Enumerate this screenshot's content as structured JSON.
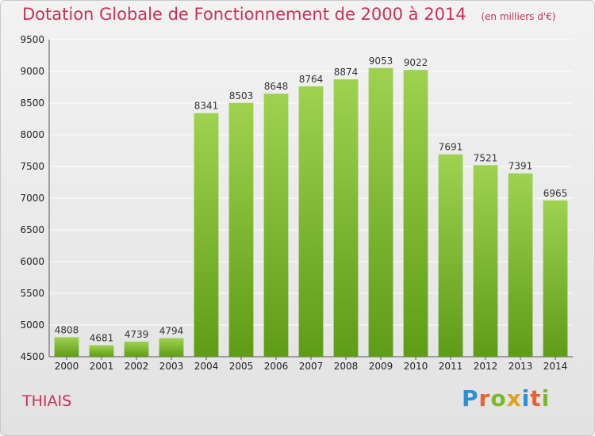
{
  "title": {
    "main": "Dotation Globale de Fonctionnement de 2000 à 2014",
    "unit": "(en milliers d'€)"
  },
  "city": "THIAIS",
  "logo": "Proxiti",
  "colors": {
    "title": "#c8325a",
    "bar_top": "#9ed24f",
    "bar_bottom": "#5f9c16",
    "grid": "#ffffff"
  },
  "chart_data": {
    "type": "bar",
    "title": "Dotation Globale de Fonctionnement de 2000 à 2014",
    "xlabel": "",
    "ylabel": "",
    "ylim": [
      4500,
      9500
    ],
    "yticks": [
      4500,
      5000,
      5500,
      6000,
      6500,
      7000,
      7500,
      8000,
      8500,
      9000,
      9500
    ],
    "categories": [
      "2000",
      "2001",
      "2002",
      "2003",
      "2004",
      "2005",
      "2006",
      "2007",
      "2008",
      "2009",
      "2010",
      "2011",
      "2012",
      "2013",
      "2014"
    ],
    "values": [
      4808,
      4681,
      4739,
      4794,
      8341,
      8503,
      8648,
      8764,
      8874,
      9053,
      9022,
      7691,
      7521,
      7391,
      6965
    ],
    "grid": true
  }
}
